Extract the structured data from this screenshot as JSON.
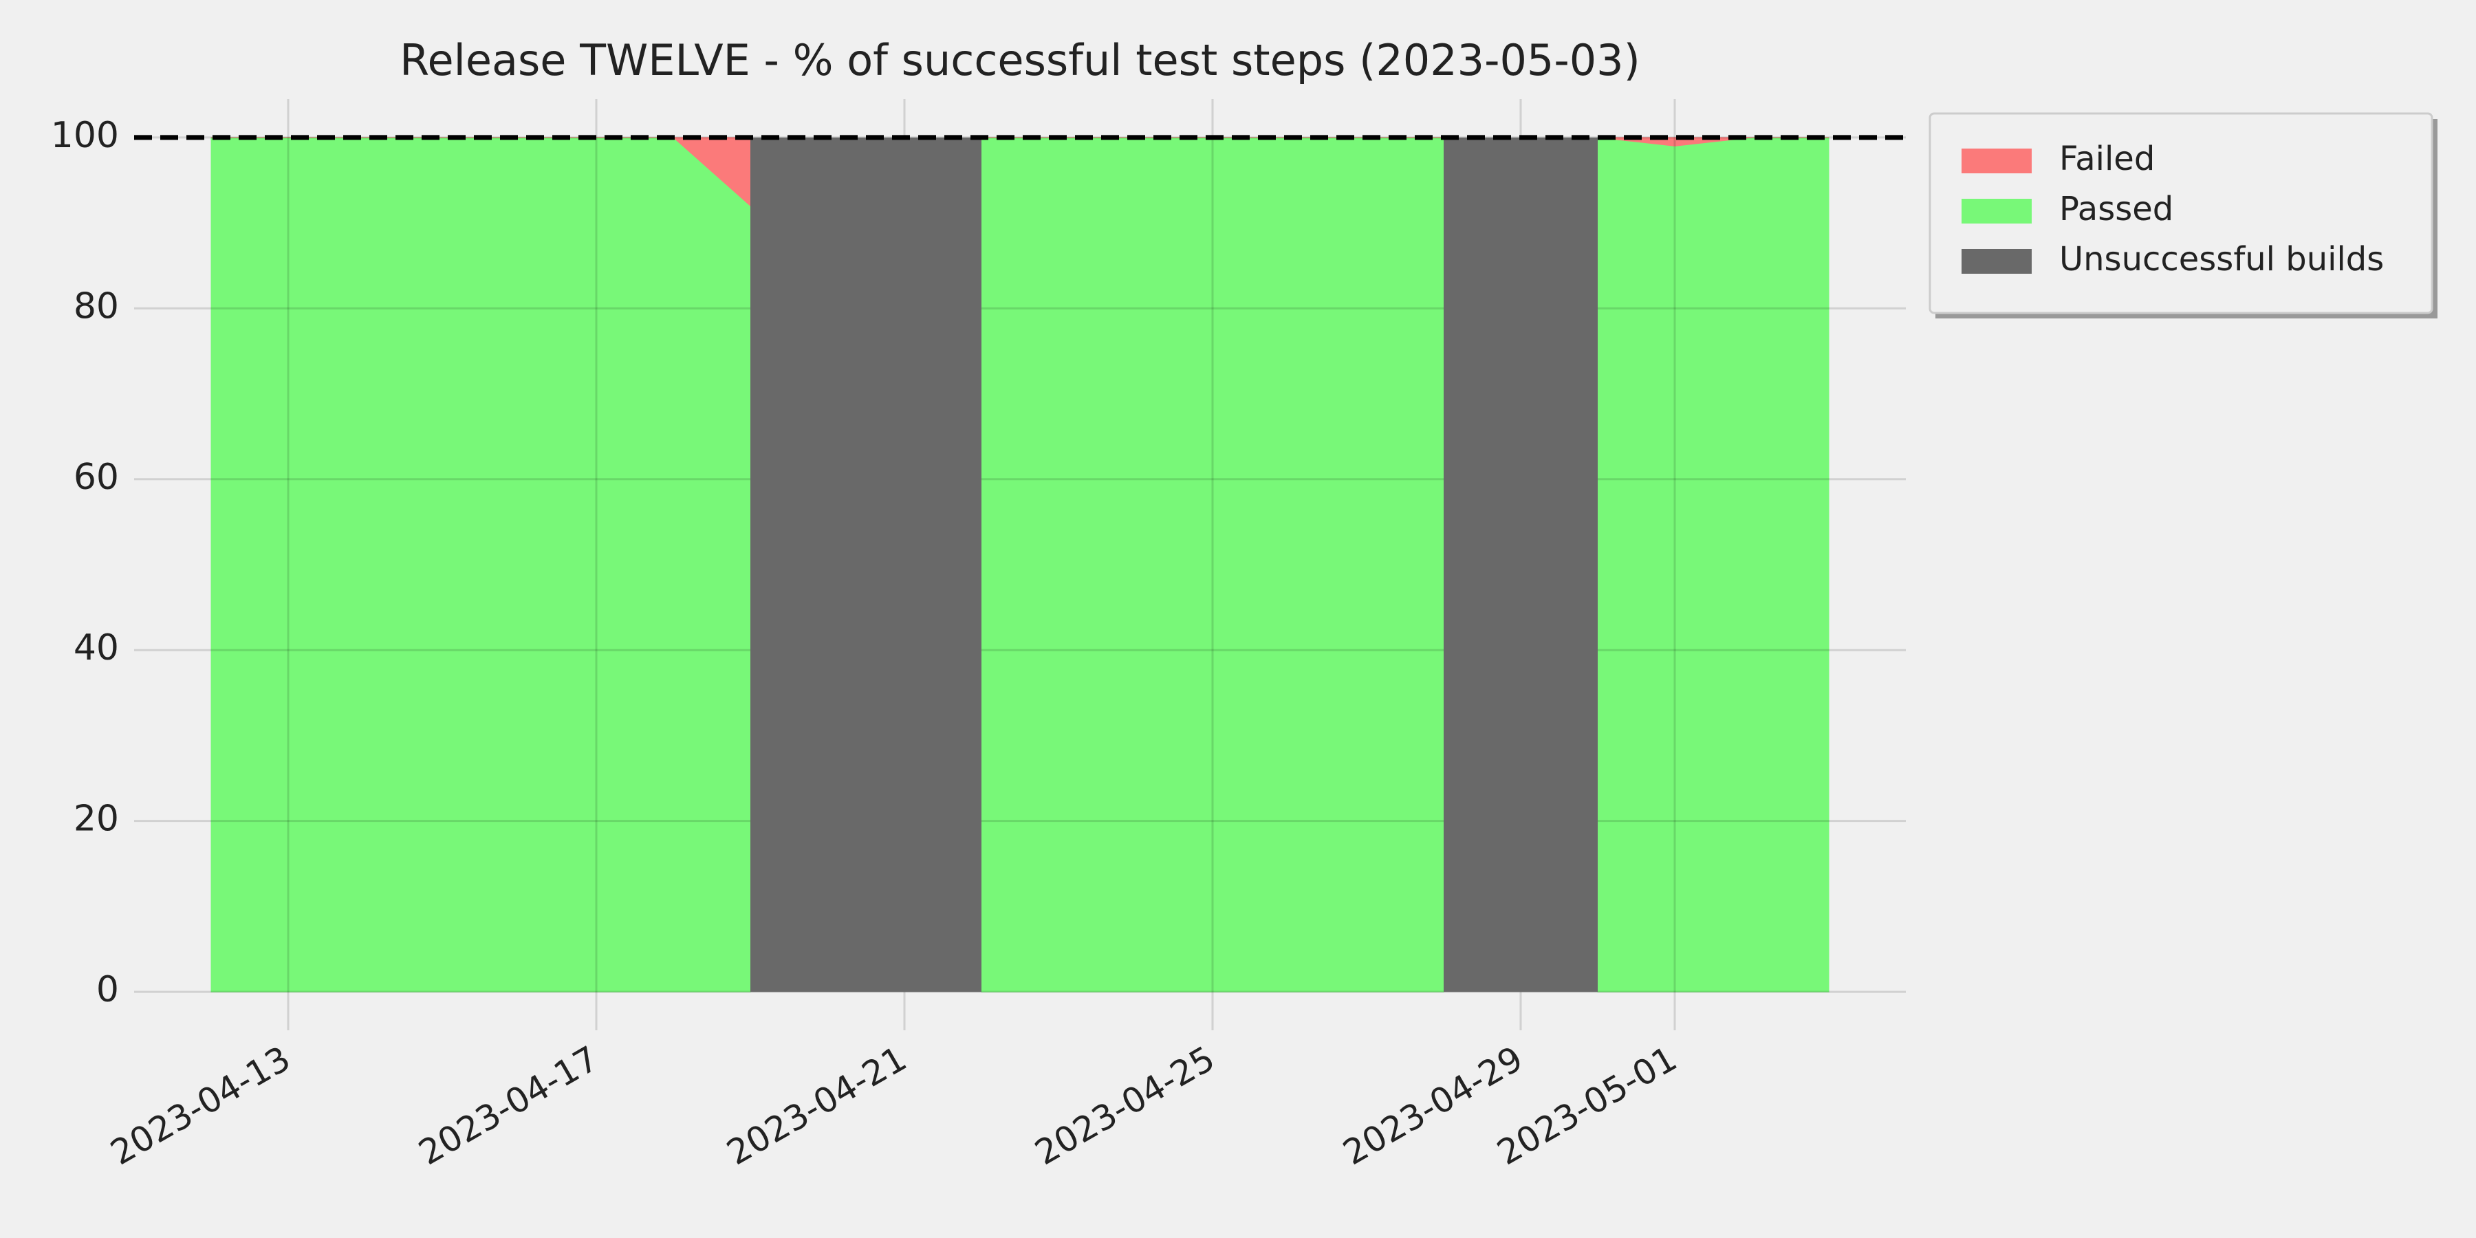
{
  "chart_data": {
    "type": "stacked_area",
    "title": "Release TWELVE - % of successful test steps (2023-05-03)",
    "x": [
      "2023-04-12",
      "2023-04-13",
      "2023-04-14",
      "2023-04-15",
      "2023-04-16",
      "2023-04-17",
      "2023-04-18",
      "2023-04-19",
      "2023-04-20",
      "2023-04-21",
      "2023-04-22",
      "2023-04-23",
      "2023-04-24",
      "2023-04-25",
      "2023-04-26",
      "2023-04-27",
      "2023-04-28",
      "2023-04-29",
      "2023-04-30",
      "2023-05-01",
      "2023-05-02",
      "2023-05-03"
    ],
    "series": [
      {
        "name": "Failed",
        "color": "#fb7a7a",
        "values": [
          0,
          0,
          0,
          0,
          0,
          0,
          0,
          8,
          null,
          null,
          0,
          0,
          0,
          0,
          0,
          0,
          0,
          null,
          0,
          1,
          0,
          0
        ]
      },
      {
        "name": "Passed",
        "color": "#78f878",
        "values": [
          100,
          100,
          100,
          100,
          100,
          100,
          100,
          92,
          null,
          null,
          100,
          100,
          100,
          100,
          100,
          100,
          100,
          null,
          100,
          99,
          100,
          100
        ]
      }
    ],
    "unsuccessful_builds": {
      "name": "Unsuccessful builds",
      "color": "#696969",
      "spans": [
        [
          "2023-04-19",
          "2023-04-22"
        ],
        [
          "2023-04-28",
          "2023-04-30"
        ]
      ]
    },
    "reference_line": 100,
    "xlim": [
      "2023-04-11",
      "2023-05-04"
    ],
    "xticks": [
      "2023-04-13",
      "2023-04-17",
      "2023-04-21",
      "2023-04-25",
      "2023-04-29",
      "2023-05-01"
    ],
    "ylim": [
      -4.5,
      104.5
    ],
    "yticks": [
      0,
      20,
      40,
      60,
      80,
      100
    ],
    "grid": true,
    "legend": "outside-upper-right"
  }
}
